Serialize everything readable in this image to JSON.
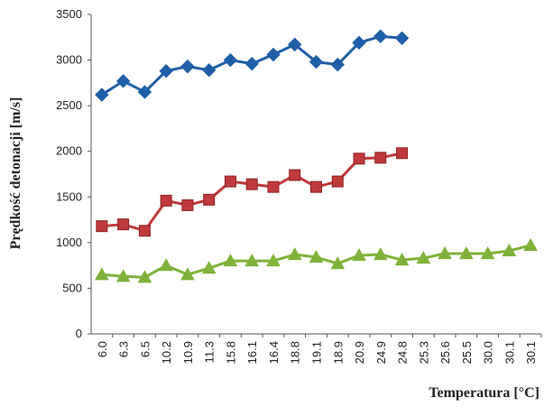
{
  "chart_data": {
    "type": "line",
    "title": "",
    "xlabel": "Temperatura [°C]",
    "ylabel": "Prędkość detonacji [m/s]",
    "ylim": [
      0,
      3500
    ],
    "yticks": [
      "0",
      "500",
      "1000",
      "1500",
      "2000",
      "2500",
      "3000",
      "3500"
    ],
    "categories": [
      "6.0",
      "6.3",
      "6.5",
      "10.2",
      "10.9",
      "11.3",
      "15.8",
      "16.1",
      "16.4",
      "18.8",
      "19.1",
      "18.9",
      "20.9",
      "24.9",
      "24.8",
      "25.3",
      "25.6",
      "25.5",
      "30.0",
      "30.1",
      "30.1"
    ],
    "grid": false,
    "legend": "none",
    "series": [
      {
        "marker": "diamond",
        "color": "#1f5fa8",
        "values": [
          2620,
          2770,
          2650,
          2880,
          2930,
          2890,
          3000,
          2960,
          3060,
          3170,
          2980,
          2950,
          3190,
          3260,
          3240,
          null,
          null,
          null,
          null,
          null,
          null
        ]
      },
      {
        "marker": "square",
        "color": "#c0393b",
        "values": [
          1180,
          1200,
          1130,
          1460,
          1410,
          1470,
          1670,
          1640,
          1610,
          1740,
          1610,
          1670,
          1920,
          1930,
          1980,
          null,
          null,
          null,
          null,
          null,
          null
        ]
      },
      {
        "marker": "triangle",
        "color": "#7fb23a",
        "values": [
          650,
          630,
          620,
          750,
          650,
          720,
          800,
          800,
          800,
          870,
          840,
          770,
          860,
          870,
          810,
          830,
          880,
          880,
          880,
          910,
          970
        ]
      }
    ]
  }
}
